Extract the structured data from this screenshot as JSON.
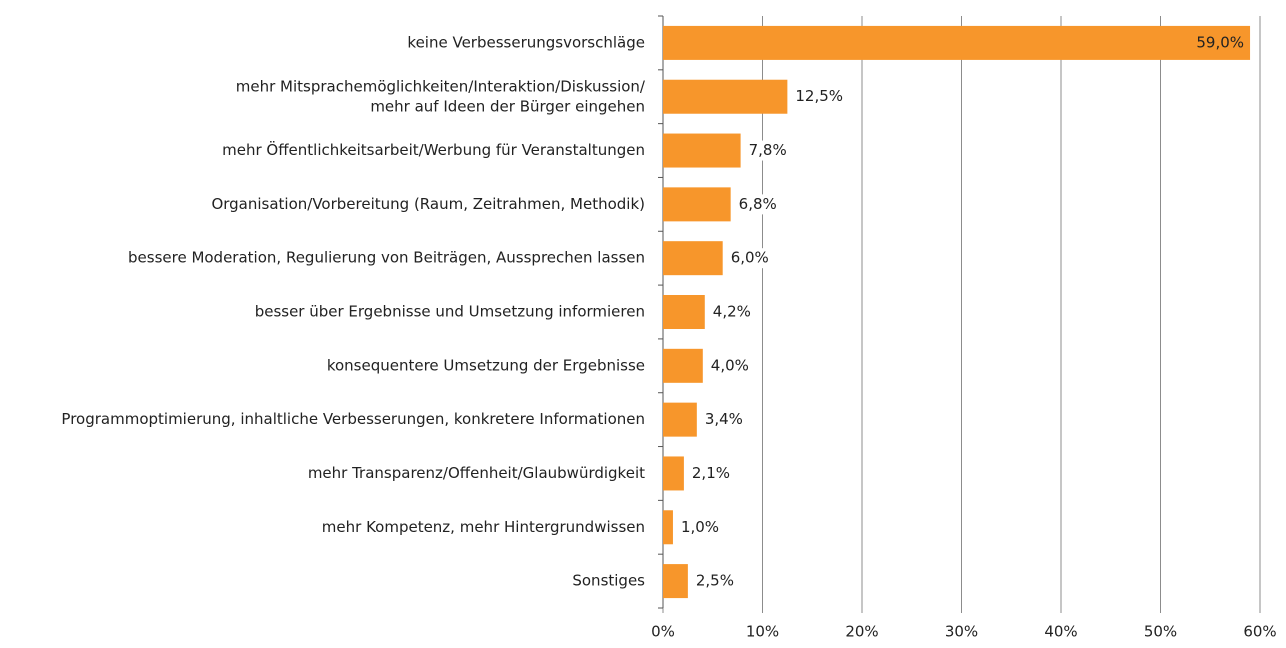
{
  "chart_data": {
    "type": "barh",
    "categories": [
      "keine Verbesserungsvorschläge",
      "mehr Mitsprachemöglichkeiten/Interaktion/Diskussion/\nmehr auf Ideen der Bürger eingehen",
      "mehr Öffentlichkeitsarbeit/Werbung für Veranstaltungen",
      "Organisation/Vorbereitung (Raum, Zeitrahmen, Methodik)",
      "bessere Moderation, Regulierung von Beiträgen, Aussprechen lassen",
      "besser über Ergebnisse und Umsetzung informieren",
      "konsequentere Umsetzung der Ergebnisse",
      "Programmoptimierung, inhaltliche Verbesserungen, konkretere Informationen",
      "mehr Transparenz/Offenheit/Glaubwürdigkeit",
      "mehr Kompetenz, mehr Hintergrundwissen",
      "Sonstiges"
    ],
    "values": [
      59.0,
      12.5,
      7.8,
      6.8,
      6.0,
      4.2,
      4.0,
      3.4,
      2.1,
      1.0,
      2.5
    ],
    "value_labels": [
      "59,0%",
      "12,5%",
      "7,8%",
      "6,8%",
      "6,0%",
      "4,2%",
      "4,0%",
      "3,4%",
      "2,1%",
      "1,0%",
      "2,5%"
    ],
    "color": "#f7962b",
    "xlim": [
      0,
      60
    ],
    "xticks": [
      {
        "value": 0,
        "label": "0%"
      },
      {
        "value": 10,
        "label": "10%"
      },
      {
        "value": 20,
        "label": "20%"
      },
      {
        "value": 30,
        "label": "30%"
      },
      {
        "value": 40,
        "label": "40%"
      },
      {
        "value": 50,
        "label": "50%"
      },
      {
        "value": 60,
        "label": "60%"
      }
    ],
    "grid": true
  }
}
